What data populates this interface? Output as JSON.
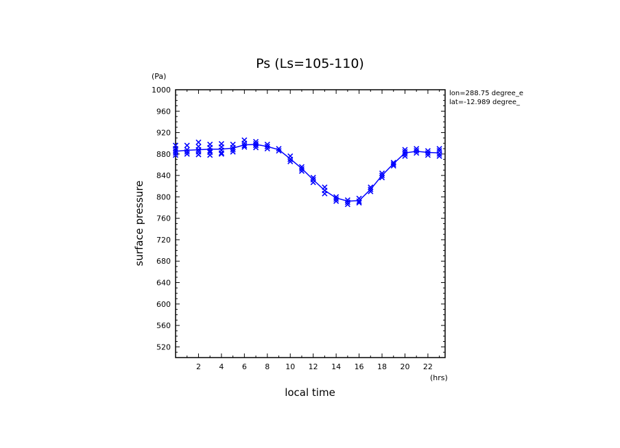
{
  "chart_data": {
    "type": "line",
    "title": "Ps (Ls=105-110)",
    "xlabel": "local time",
    "ylabel": "surface pressure",
    "x_unit": "(hrs)",
    "y_unit": "(Pa)",
    "xlim": [
      0,
      23.5
    ],
    "ylim": [
      500,
      1000
    ],
    "x_ticks": [
      2,
      4,
      6,
      8,
      10,
      12,
      14,
      16,
      18,
      20,
      22
    ],
    "y_ticks": [
      520,
      560,
      600,
      640,
      680,
      720,
      760,
      800,
      840,
      880,
      920,
      960,
      1000
    ],
    "annotations": [
      "lon=288.75 degree_e",
      "lat=-12.989 degree_"
    ],
    "series": [
      {
        "style": "line",
        "color": "#0000ff",
        "x": [
          0.0,
          1.0,
          2.0,
          3.0,
          4.0,
          5.0,
          6.0,
          7.0,
          8.0,
          9.0,
          10.0,
          11.0,
          12.0,
          13.0,
          14.0,
          15.0,
          16.0,
          17.0,
          18.0,
          19.0,
          20.0,
          21.0,
          22.0,
          23.0
        ],
        "y": [
          885,
          887,
          888,
          889,
          889,
          891,
          897,
          898,
          894,
          888,
          871,
          853,
          832,
          812,
          798,
          792,
          793,
          814,
          840,
          862,
          882,
          885,
          883,
          882
        ]
      },
      {
        "style": "markers",
        "marker": "x",
        "color": "#0000ff",
        "x": [
          0,
          0,
          0,
          0,
          0,
          1,
          1,
          1,
          1,
          2,
          2,
          2,
          2,
          2,
          3,
          3,
          3,
          3,
          3,
          4,
          4,
          4,
          4,
          4,
          5,
          5,
          5,
          5,
          6,
          6,
          6,
          6,
          7,
          7,
          7,
          7,
          8,
          8,
          8,
          9,
          9,
          10,
          10,
          10,
          11,
          11,
          11,
          12,
          12,
          12,
          13,
          13,
          13,
          14,
          14,
          14,
          15,
          15,
          15,
          16,
          16,
          16,
          17,
          17,
          17,
          18,
          18,
          18,
          19,
          19,
          19,
          20,
          20,
          20,
          20,
          21,
          21,
          21,
          22,
          22,
          22,
          23,
          23,
          23,
          23
        ],
        "y": [
          896,
          890,
          886,
          882,
          878,
          896,
          888,
          884,
          880,
          902,
          894,
          888,
          884,
          879,
          898,
          892,
          886,
          883,
          878,
          899,
          893,
          887,
          882,
          880,
          898,
          892,
          888,
          884,
          906,
          900,
          896,
          893,
          903,
          899,
          896,
          892,
          898,
          894,
          890,
          890,
          886,
          876,
          870,
          866,
          856,
          852,
          848,
          836,
          832,
          827,
          818,
          812,
          806,
          800,
          796,
          792,
          794,
          790,
          786,
          797,
          792,
          789,
          818,
          814,
          810,
          844,
          840,
          836,
          864,
          861,
          858,
          888,
          884,
          880,
          876,
          890,
          886,
          882,
          886,
          882,
          878,
          890,
          886,
          880,
          876
        ]
      }
    ]
  }
}
